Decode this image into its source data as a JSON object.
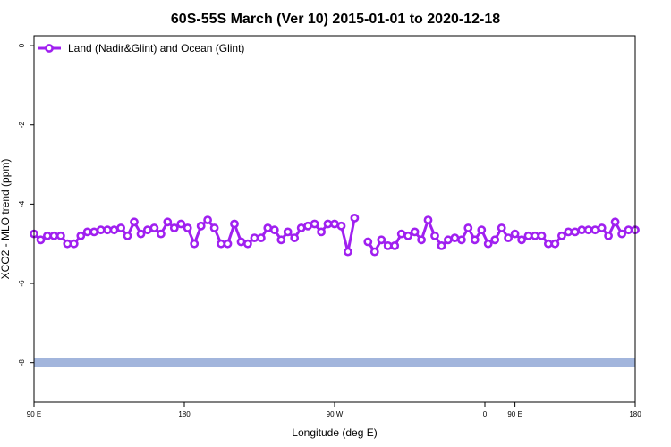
{
  "chart_data": {
    "type": "line",
    "title": "60S-55S March (Ver 10)   2015-01-01 to 2020-12-18",
    "xlabel": "Longitude (deg E)",
    "ylabel": "XCO2 - MLO trend (ppm)",
    "xlim": [
      90,
      450
    ],
    "ylim": [
      -9,
      0.25
    ],
    "x_ticks": [
      {
        "value": 90,
        "label": "90 E"
      },
      {
        "value": 180,
        "label": "180"
      },
      {
        "value": 270,
        "label": "90 W"
      },
      {
        "value": 360,
        "label": "0"
      },
      {
        "value": 450,
        "label": "90 E"
      },
      {
        "value": 540,
        "label": "180"
      }
    ],
    "y_ticks": [
      {
        "value": 0,
        "label": "0"
      },
      {
        "value": -2,
        "label": "-2"
      },
      {
        "value": -4,
        "label": "-4"
      },
      {
        "value": -6,
        "label": "-6"
      },
      {
        "value": -8,
        "label": "-8"
      }
    ],
    "legend": {
      "placement": "top-left"
    },
    "colors": {
      "series": "#a020f0",
      "band": "#a2b5dc"
    },
    "band": {
      "y_min": -8.12,
      "y_max": -7.88
    },
    "series": [
      {
        "name": "Land (Nadir&Glint) and Ocean (Glint)",
        "points": [
          [
            90,
            -4.75
          ],
          [
            94,
            -4.9
          ],
          [
            98,
            -4.8
          ],
          [
            102,
            -4.8
          ],
          [
            106,
            -4.8
          ],
          [
            110,
            -5.0
          ],
          [
            114,
            -5.0
          ],
          [
            118,
            -4.8
          ],
          [
            122,
            -4.7
          ],
          [
            126,
            -4.7
          ],
          [
            130,
            -4.65
          ],
          [
            134,
            -4.65
          ],
          [
            138,
            -4.65
          ],
          [
            142,
            -4.6
          ],
          [
            146,
            -4.8
          ],
          [
            150,
            -4.45
          ],
          [
            154,
            -4.75
          ],
          [
            158,
            -4.65
          ],
          [
            162,
            -4.6
          ],
          [
            166,
            -4.75
          ],
          [
            170,
            -4.45
          ],
          [
            174,
            -4.6
          ],
          [
            178,
            -4.5
          ],
          [
            182,
            -4.6
          ],
          [
            186,
            -5.0
          ],
          [
            190,
            -4.55
          ],
          [
            194,
            -4.4
          ],
          [
            198,
            -4.6
          ],
          [
            202,
            -5.0
          ],
          [
            206,
            -5.0
          ],
          [
            210,
            -4.5
          ],
          [
            214,
            -4.95
          ],
          [
            218,
            -5.0
          ],
          [
            222,
            -4.85
          ],
          [
            226,
            -4.85
          ],
          [
            230,
            -4.6
          ],
          [
            234,
            -4.65
          ],
          [
            238,
            -4.9
          ],
          [
            242,
            -4.7
          ],
          [
            246,
            -4.85
          ],
          [
            250,
            -4.6
          ],
          [
            254,
            -4.55
          ],
          [
            258,
            -4.5
          ],
          [
            262,
            -4.7
          ],
          [
            266,
            -4.5
          ],
          [
            270,
            -4.5
          ],
          [
            274,
            -4.55
          ],
          [
            278,
            -5.2
          ],
          [
            282,
            -4.35
          ],
          null,
          [
            290,
            -4.95
          ],
          [
            294,
            -5.2
          ],
          [
            298,
            -4.9
          ],
          [
            302,
            -5.05
          ],
          [
            306,
            -5.05
          ],
          [
            310,
            -4.75
          ],
          [
            314,
            -4.8
          ],
          [
            318,
            -4.7
          ],
          [
            322,
            -4.9
          ],
          [
            326,
            -4.4
          ],
          [
            330,
            -4.8
          ],
          [
            334,
            -5.05
          ],
          [
            338,
            -4.9
          ],
          [
            342,
            -4.85
          ],
          [
            346,
            -4.9
          ],
          [
            350,
            -4.6
          ],
          [
            354,
            -4.9
          ],
          [
            358,
            -4.65
          ],
          [
            362,
            -5.0
          ],
          [
            366,
            -4.9
          ],
          [
            370,
            -4.6
          ],
          [
            374,
            -4.85
          ],
          [
            378,
            -4.75
          ],
          [
            382,
            -4.9
          ],
          [
            386,
            -4.8
          ],
          [
            390,
            -4.8
          ],
          [
            394,
            -4.8
          ],
          [
            398,
            -5.0
          ],
          [
            402,
            -5.0
          ],
          [
            406,
            -4.8
          ],
          [
            410,
            -4.7
          ],
          [
            414,
            -4.7
          ],
          [
            418,
            -4.65
          ],
          [
            422,
            -4.65
          ],
          [
            426,
            -4.65
          ],
          [
            430,
            -4.6
          ],
          [
            434,
            -4.8
          ],
          [
            438,
            -4.45
          ],
          [
            442,
            -4.75
          ],
          [
            446,
            -4.65
          ],
          [
            450,
            -4.65
          ]
        ]
      }
    ]
  }
}
